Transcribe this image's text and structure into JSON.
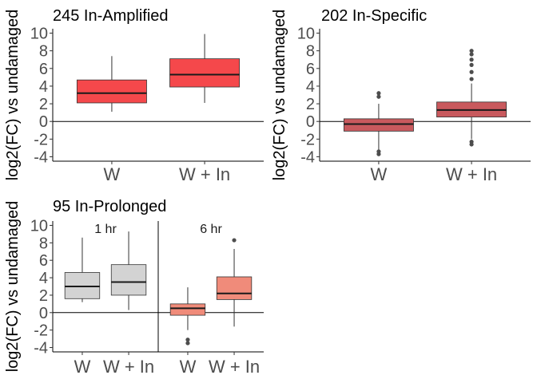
{
  "chart_data": [
    {
      "type": "boxplot",
      "title": "245 In-Amplified",
      "ylabel": "log2(FC) vs undamaged",
      "xlabel": "",
      "ylim": [
        -4.5,
        10.5
      ],
      "yticks": [
        -4,
        -2,
        0,
        2,
        4,
        6,
        8,
        10
      ],
      "reference_line_y": 0,
      "grid": false,
      "categories": [
        "W",
        "W + In"
      ],
      "boxes": [
        {
          "category": "W",
          "color": "#f5484b",
          "whisker_low": 1.1,
          "q1": 2.1,
          "median": 3.2,
          "q3": 4.7,
          "whisker_high": 7.4,
          "outliers": []
        },
        {
          "category": "W + In",
          "color": "#f5484b",
          "whisker_low": 2.1,
          "q1": 3.9,
          "median": 5.3,
          "q3": 7.1,
          "whisker_high": 9.9,
          "outliers": []
        }
      ]
    },
    {
      "type": "boxplot",
      "title": "202 In-Specific",
      "ylabel": "log2(FC) vs undamaged",
      "xlabel": "",
      "ylim": [
        -4.5,
        10.5
      ],
      "yticks": [
        -4,
        -2,
        0,
        2,
        4,
        6,
        8,
        10
      ],
      "reference_line_y": 0,
      "grid": false,
      "categories": [
        "W",
        "W + In"
      ],
      "boxes": [
        {
          "category": "W",
          "color": "#c9595d",
          "whisker_low": -3.2,
          "q1": -1.1,
          "median": -0.3,
          "q3": 0.3,
          "whisker_high": 2.0,
          "outliers": [
            2.8,
            3.2,
            -3.4,
            -3.7
          ]
        },
        {
          "category": "W + In",
          "color": "#c9595d",
          "whisker_low": -2.0,
          "q1": 0.5,
          "median": 1.3,
          "q3": 2.2,
          "whisker_high": 4.3,
          "outliers": [
            4.8,
            5.6,
            6.4,
            7.0,
            7.6,
            8.0,
            -2.3,
            -2.6
          ]
        }
      ]
    },
    {
      "type": "boxplot",
      "title": "95 In-Prolonged",
      "ylabel": "log2(FC) vs undamaged",
      "xlabel": "",
      "ylim": [
        -4.5,
        10.5
      ],
      "yticks": [
        -4,
        -2,
        0,
        2,
        4,
        6,
        8,
        10
      ],
      "reference_line_y": 0,
      "grid": false,
      "categories": [
        "W",
        "W + In",
        "W",
        "W + In"
      ],
      "panels": [
        "1 hr",
        "6 hr"
      ],
      "boxes": [
        {
          "panel": "1 hr",
          "category": "W",
          "color": "#d3d3d3",
          "whisker_low": 1.2,
          "q1": 1.6,
          "median": 3.0,
          "q3": 4.6,
          "whisker_high": 8.6,
          "outliers": []
        },
        {
          "panel": "1 hr",
          "category": "W + In",
          "color": "#d3d3d3",
          "whisker_low": 0.3,
          "q1": 2.0,
          "median": 3.5,
          "q3": 5.5,
          "whisker_high": 9.3,
          "outliers": []
        },
        {
          "panel": "6 hr",
          "category": "W",
          "color": "#f08b7a",
          "whisker_low": -2.0,
          "q1": -0.3,
          "median": 0.5,
          "q3": 1.0,
          "whisker_high": 2.9,
          "outliers": [
            -3.1,
            -3.5
          ]
        },
        {
          "panel": "6 hr",
          "category": "W + In",
          "color": "#f08b7a",
          "whisker_low": -1.6,
          "q1": 1.5,
          "median": 2.2,
          "q3": 4.1,
          "whisker_high": 7.3,
          "outliers": [
            8.3
          ]
        }
      ]
    }
  ]
}
